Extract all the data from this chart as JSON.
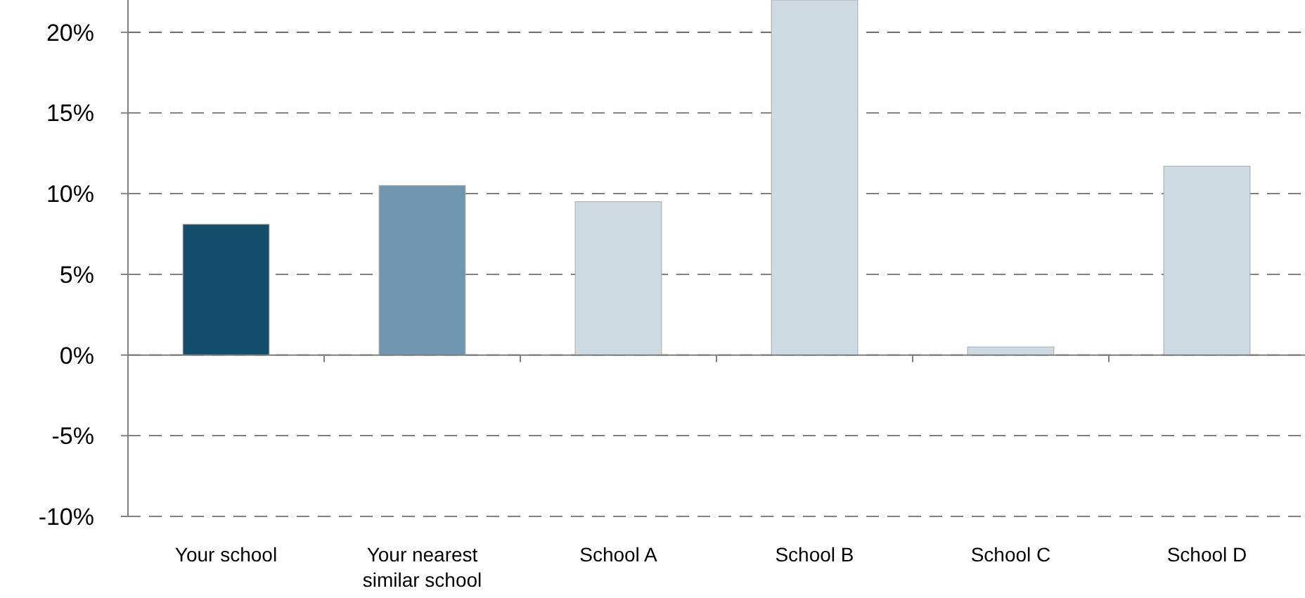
{
  "chart_data": {
    "type": "bar",
    "categories": [
      "Your school",
      "Your nearest similar school",
      "School A",
      "School B",
      "School C",
      "School D"
    ],
    "values": [
      8.1,
      10.5,
      9.5,
      22,
      0.5,
      11.7
    ],
    "colors": [
      "#124e6b",
      "#7096b0",
      "#cfdbe3",
      "#cfdbe3",
      "#cfdbe3",
      "#cfdbe3"
    ],
    "ylim": [
      -10,
      22
    ],
    "yticks": [
      {
        "value": -10,
        "label": "-10%"
      },
      {
        "value": -5,
        "label": "-5%"
      },
      {
        "value": 0,
        "label": "0%"
      },
      {
        "value": 5,
        "label": "5%"
      },
      {
        "value": 10,
        "label": "10%"
      },
      {
        "value": 15,
        "label": "15%"
      },
      {
        "value": 20,
        "label": "20%"
      }
    ],
    "grid": "y"
  }
}
